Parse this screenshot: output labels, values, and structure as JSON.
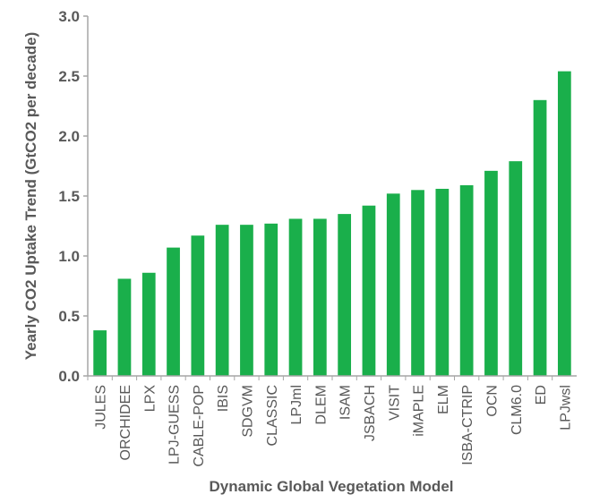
{
  "chart_data": {
    "type": "bar",
    "xlabel": "Dynamic Global Vegetation Model",
    "ylabel": "Yearly CO2 Uptake Trend (GtCO2 per decade)",
    "ylim": [
      0,
      3.0
    ],
    "yticks": [
      "0.0",
      "0.5",
      "1.0",
      "1.5",
      "2.0",
      "2.5",
      "3.0"
    ],
    "grid": false,
    "bar_color": "#1aaf4b",
    "categories": [
      "JULES",
      "ORCHIDEE",
      "LPX",
      "LPJ-GUESS",
      "CABLE-POP",
      "IBIS",
      "SDGVM",
      "CLASSIC",
      "LPJml",
      "DLEM",
      "ISAM",
      "JSBACH",
      "VISIT",
      "iMAPLE",
      "ELM",
      "ISBA-CTRIP",
      "OCN",
      "CLM6.0",
      "ED",
      "LPJwsl"
    ],
    "values": [
      0.38,
      0.81,
      0.86,
      1.07,
      1.17,
      1.26,
      1.26,
      1.27,
      1.31,
      1.31,
      1.35,
      1.42,
      1.52,
      1.55,
      1.56,
      1.59,
      1.71,
      1.79,
      2.3,
      2.54
    ]
  }
}
